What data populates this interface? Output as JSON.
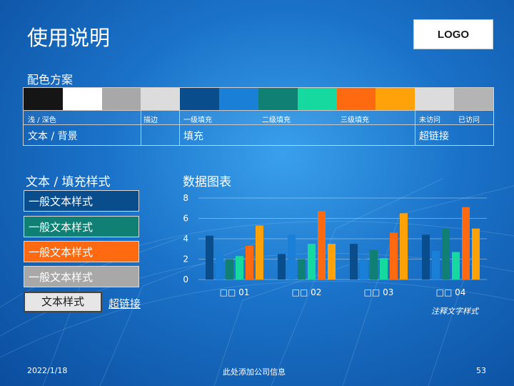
{
  "slide": {
    "title": "使用说明",
    "logo": "LOGO",
    "scheme_title": "配色方案",
    "palette": {
      "colors": [
        "#151515",
        "#ffffff",
        "#a8a8a8",
        "#dcdcdc",
        "#0a4d8c",
        "#1a7fd6",
        "#0f8073",
        "#16d9a0",
        "#ff6a10",
        "#ffa20a",
        "#dcdcdc",
        "#b4b4b4"
      ],
      "labels": [
        "浅 / 深色",
        "描边",
        "一级填充",
        "二级填充",
        "三级填充",
        "未访问",
        "已访问"
      ],
      "groups": [
        "文本 / 背景",
        "填充",
        "超链接"
      ]
    },
    "text_section_title": "文本 / 填充样式",
    "text_styles": [
      "一般文本样式",
      "一般文本样式",
      "一般文本样式",
      "一般文本样式"
    ],
    "small_text": "文本样式",
    "hyperlink": "超链接",
    "chart_section_title": "数据图表",
    "chart_note": "注释文字样式",
    "footer": {
      "date": "2022/1/18",
      "company": "此处添加公司信息",
      "page": "53"
    }
  },
  "chart_data": {
    "type": "bar",
    "title": "",
    "xlabel": "",
    "ylabel": "",
    "ylim": [
      0,
      8
    ],
    "yticks": [
      0,
      2,
      4,
      6,
      8
    ],
    "grid": true,
    "legend": "none",
    "categories": [
      "□□ 01",
      "□□ 02",
      "□□ 03",
      "□□ 04"
    ],
    "series_colors": [
      "#0a4d8c",
      "#1a7fd6",
      "#0f8073",
      "#16d9a0",
      "#ff6a10",
      "#ffa20a"
    ],
    "series": [
      {
        "values": [
          4.3,
          2.5,
          3.5,
          4.4
        ]
      },
      {
        "values": [
          2.4,
          4.4,
          2.0,
          2.8
        ]
      },
      {
        "values": [
          2.0,
          2.0,
          2.9,
          5.0
        ]
      },
      {
        "values": [
          2.3,
          3.5,
          2.1,
          2.7
        ]
      },
      {
        "values": [
          3.3,
          6.7,
          4.6,
          7.1
        ]
      },
      {
        "values": [
          5.3,
          3.5,
          6.5,
          5.0
        ]
      }
    ]
  }
}
